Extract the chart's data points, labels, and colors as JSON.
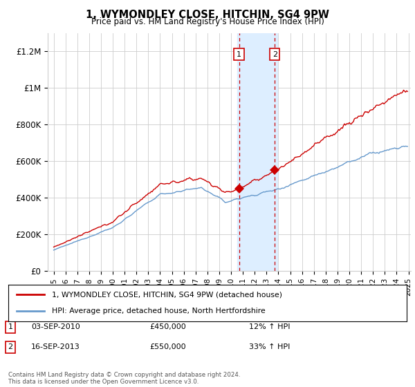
{
  "title": "1, WYMONDLEY CLOSE, HITCHIN, SG4 9PW",
  "subtitle": "Price paid vs. HM Land Registry's House Price Index (HPI)",
  "legend_line1": "1, WYMONDLEY CLOSE, HITCHIN, SG4 9PW (detached house)",
  "legend_line2": "HPI: Average price, detached house, North Hertfordshire",
  "annotation1_date": "03-SEP-2010",
  "annotation1_price": "£450,000",
  "annotation1_hpi": "12% ↑ HPI",
  "annotation2_date": "16-SEP-2013",
  "annotation2_price": "£550,000",
  "annotation2_hpi": "33% ↑ HPI",
  "footer": "Contains HM Land Registry data © Crown copyright and database right 2024.\nThis data is licensed under the Open Government Licence v3.0.",
  "red_color": "#cc0000",
  "blue_color": "#6699cc",
  "highlight_color": "#ddeeff",
  "annotation_box_color": "#cc0000",
  "ylim": [
    0,
    1300000
  ],
  "yticks": [
    0,
    200000,
    400000,
    600000,
    800000,
    1000000,
    1200000
  ],
  "ytick_labels": [
    "£0",
    "£200K",
    "£400K",
    "£600K",
    "£800K",
    "£1M",
    "£1.2M"
  ],
  "sale1_x": 2010.67,
  "sale1_y": 450000,
  "sale2_x": 2013.7,
  "sale2_y": 550000,
  "highlight_x1": 2010.5,
  "highlight_x2": 2013.9,
  "vline1_x": 2010.67,
  "vline2_x": 2013.7,
  "xmin": 1994.5,
  "xmax": 2025.2
}
